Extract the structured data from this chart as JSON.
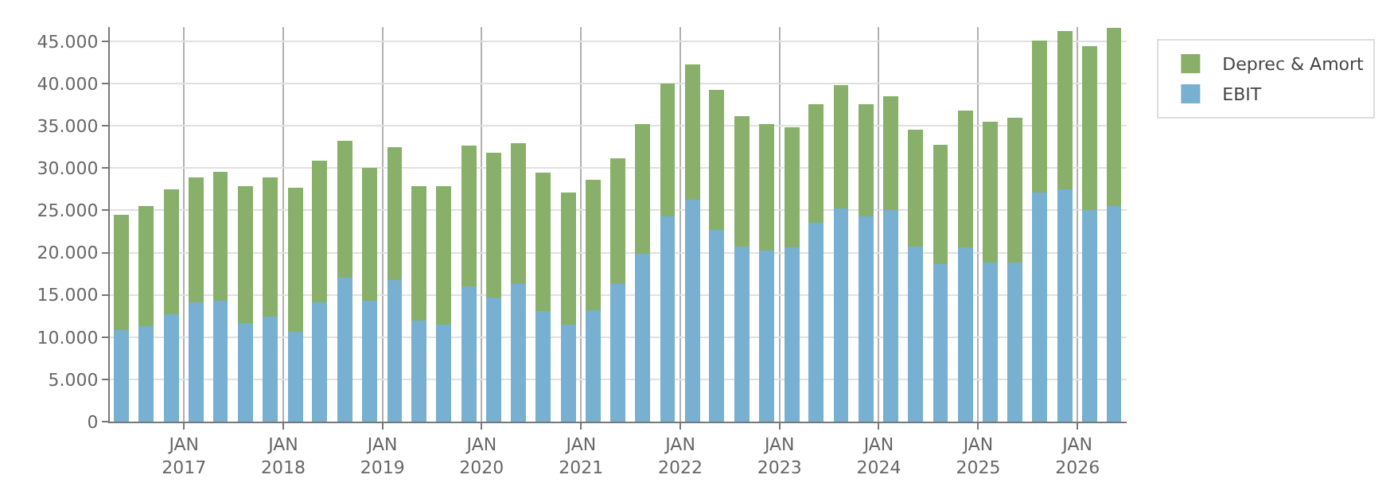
{
  "chart_data": {
    "type": "bar",
    "stacked": true,
    "x": [
      "2016-05-15",
      "2016-08-15",
      "2016-11-15",
      "2017-02-15",
      "2017-05-15",
      "2017-08-15",
      "2017-11-15",
      "2018-02-15",
      "2018-05-15",
      "2018-08-15",
      "2018-11-15",
      "2019-02-15",
      "2019-05-15",
      "2019-08-15",
      "2019-11-15",
      "2020-02-15",
      "2020-05-15",
      "2020-08-15",
      "2020-11-15",
      "2021-02-15",
      "2021-05-15",
      "2021-08-15",
      "2021-11-15",
      "2022-02-15",
      "2022-05-15",
      "2022-08-15",
      "2022-11-15",
      "2023-02-15",
      "2023-05-15",
      "2023-08-15",
      "2023-11-15",
      "2024-02-15",
      "2024-05-15",
      "2024-08-15",
      "2024-11-15",
      "2025-02-15",
      "2025-05-15",
      "2025-08-15",
      "2025-11-15",
      "2026-02-15",
      "2026-05-15"
    ],
    "series": [
      {
        "name": "EBIT",
        "color": "#77b0d1",
        "values": [
          10800,
          11300,
          12700,
          14100,
          14300,
          11700,
          12400,
          10600,
          14100,
          17000,
          14300,
          16800,
          12000,
          11500,
          16000,
          14700,
          16300,
          13100,
          11500,
          13200,
          16300,
          19900,
          24300,
          26300,
          22700,
          20700,
          20200,
          20600,
          23500,
          25200,
          24300,
          25000,
          20700,
          18600,
          20600,
          18800,
          18800,
          27100,
          27500,
          25000,
          25500
        ]
      },
      {
        "name": "Deprec & Amort",
        "color": "#88b06a",
        "values": [
          13700,
          14200,
          14800,
          14800,
          15300,
          16200,
          16500,
          17100,
          16800,
          16200,
          15700,
          15700,
          15900,
          16400,
          16700,
          17100,
          16700,
          16400,
          15600,
          15400,
          14900,
          15300,
          15700,
          16000,
          16600,
          15500,
          15000,
          14200,
          14100,
          14600,
          13300,
          13500,
          13900,
          14200,
          16200,
          16700,
          17200,
          18000,
          18700,
          19400,
          21100
        ]
      }
    ],
    "xlim": [
      "2016-04-03",
      "2026-07-01"
    ],
    "xticks": [
      {
        "value": "2017-01-01",
        "label": "JAN\n2017"
      },
      {
        "value": "2018-01-01",
        "label": "JAN\n2018"
      },
      {
        "value": "2019-01-01",
        "label": "JAN\n2019"
      },
      {
        "value": "2020-01-01",
        "label": "JAN\n2020"
      },
      {
        "value": "2021-01-01",
        "label": "JAN\n2021"
      },
      {
        "value": "2022-01-01",
        "label": "JAN\n2022"
      },
      {
        "value": "2023-01-01",
        "label": "JAN\n2023"
      },
      {
        "value": "2024-01-01",
        "label": "JAN\n2024"
      },
      {
        "value": "2025-01-01",
        "label": "JAN\n2025"
      },
      {
        "value": "2026-01-01",
        "label": "JAN\n2026"
      }
    ],
    "ylim": [
      0,
      46700
    ],
    "yticks": [
      {
        "value": 0,
        "label": "0"
      },
      {
        "value": 5000,
        "label": "5.000"
      },
      {
        "value": 10000,
        "label": "10.000"
      },
      {
        "value": 15000,
        "label": "15.000"
      },
      {
        "value": 20000,
        "label": "20.000"
      },
      {
        "value": 25000,
        "label": "25.000"
      },
      {
        "value": 30000,
        "label": "30.000"
      },
      {
        "value": 35000,
        "label": "35.000"
      },
      {
        "value": 40000,
        "label": "40.000"
      },
      {
        "value": 45000,
        "label": "45.000"
      }
    ],
    "grid": true,
    "legend": "top right"
  }
}
